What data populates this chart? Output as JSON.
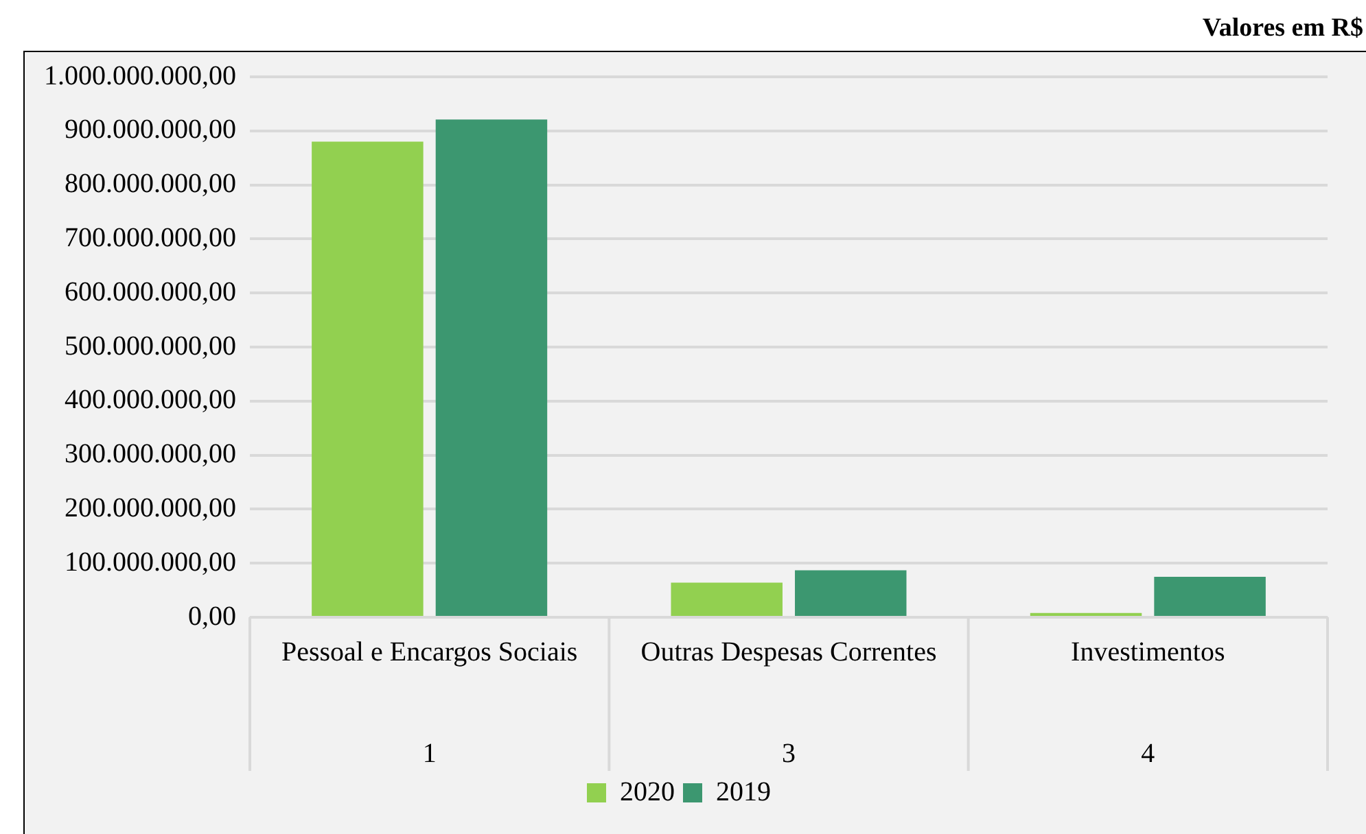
{
  "chart_data": {
    "type": "bar",
    "title": "Valores em R$",
    "categories": [
      "Pessoal e Encargos Sociais",
      "Outras Despesas Correntes",
      "Investimentos"
    ],
    "series": [
      {
        "name": "2020",
        "color": "#92d050",
        "values": [
          880000000,
          64000000,
          8000000
        ]
      },
      {
        "name": "2019",
        "color": "#3c9770",
        "values": [
          921000000,
          87000000,
          75000000
        ]
      }
    ],
    "ylim": [
      0,
      1000000000
    ],
    "yticks": [
      {
        "value": 0,
        "label": "0,00"
      },
      {
        "value": 100000000,
        "label": "100.000.000,00"
      },
      {
        "value": 200000000,
        "label": "200.000.000,00"
      },
      {
        "value": 300000000,
        "label": "300.000.000,00"
      },
      {
        "value": 400000000,
        "label": "400.000.000,00"
      },
      {
        "value": 500000000,
        "label": "500.000.000,00"
      },
      {
        "value": 600000000,
        "label": "600.000.000,00"
      },
      {
        "value": 700000000,
        "label": "700.000.000,00"
      },
      {
        "value": 800000000,
        "label": "800.000.000,00"
      },
      {
        "value": 900000000,
        "label": "900.000.000,00"
      },
      {
        "value": 1000000000,
        "label": "1.000.000.000,00"
      }
    ],
    "annotations": [
      "1",
      "3",
      "4"
    ],
    "grid": "y",
    "legend": "bottom"
  }
}
